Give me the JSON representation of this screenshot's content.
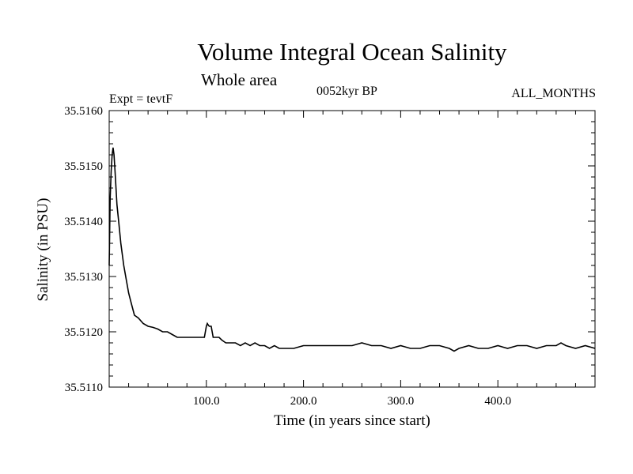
{
  "header": {
    "title": "Volume Integral Ocean Salinity",
    "subtitle": "Whole area",
    "experiment": "Expt = tevtF",
    "period": "0052kyr BP",
    "months": "ALL_MONTHS"
  },
  "chart_data": {
    "type": "line",
    "title": "Volume Integral Ocean Salinity",
    "subtitle": "Whole area",
    "xlabel": "Time (in years since start)",
    "ylabel": "Salinity (in PSU)",
    "xlim": [
      0,
      500
    ],
    "ylim": [
      35.511,
      35.516
    ],
    "x_ticks": [
      100,
      200,
      300,
      400
    ],
    "x_tick_labels": [
      "100.0",
      "200.0",
      "300.0",
      "400.0"
    ],
    "y_ticks": [
      35.511,
      35.512,
      35.513,
      35.514,
      35.515,
      35.516
    ],
    "y_tick_labels": [
      "35.5110",
      "35.5120",
      "35.5130",
      "35.5140",
      "35.5150",
      "35.5160"
    ],
    "grid": false,
    "line_color": "#000000",
    "series": [
      {
        "x": [
          0,
          1,
          2,
          3,
          4,
          5,
          6,
          7,
          8,
          10,
          12,
          15,
          18,
          20,
          23,
          26,
          30,
          35,
          40,
          45,
          50,
          55,
          60,
          65,
          70,
          75,
          80,
          85,
          90,
          95,
          98,
          100,
          101,
          102,
          103,
          104,
          105,
          107,
          110,
          113,
          116,
          120,
          125,
          130,
          135,
          140,
          145,
          150,
          155,
          160,
          165,
          170,
          175,
          180,
          190,
          200,
          210,
          220,
          230,
          240,
          250,
          260,
          270,
          280,
          290,
          300,
          310,
          320,
          330,
          340,
          350,
          355,
          360,
          370,
          380,
          390,
          400,
          410,
          420,
          430,
          440,
          450,
          460,
          465,
          470,
          480,
          490,
          500
        ],
        "y": [
          35.5132,
          35.5144,
          35.5149,
          35.5152,
          35.51533,
          35.5152,
          35.5149,
          35.5146,
          35.5143,
          35.51395,
          35.5136,
          35.5132,
          35.5129,
          35.5127,
          35.5125,
          35.5123,
          35.51225,
          35.51215,
          35.5121,
          35.51208,
          35.51205,
          35.512,
          35.512,
          35.51195,
          35.5119,
          35.5119,
          35.5119,
          35.5119,
          35.5119,
          35.5119,
          35.5119,
          35.5121,
          35.51215,
          35.51212,
          35.5121,
          35.5121,
          35.5121,
          35.5119,
          35.5119,
          35.5119,
          35.51185,
          35.5118,
          35.5118,
          35.5118,
          35.51175,
          35.5118,
          35.51175,
          35.5118,
          35.51175,
          35.51175,
          35.5117,
          35.51175,
          35.5117,
          35.5117,
          35.5117,
          35.51175,
          35.51175,
          35.51175,
          35.51175,
          35.51175,
          35.51175,
          35.5118,
          35.51175,
          35.51175,
          35.5117,
          35.51175,
          35.5117,
          35.5117,
          35.51175,
          35.51175,
          35.5117,
          35.51165,
          35.5117,
          35.51175,
          35.5117,
          35.5117,
          35.51175,
          35.5117,
          35.51175,
          35.51175,
          35.5117,
          35.51175,
          35.51175,
          35.5118,
          35.51175,
          35.5117,
          35.51175,
          35.5117
        ]
      }
    ]
  }
}
